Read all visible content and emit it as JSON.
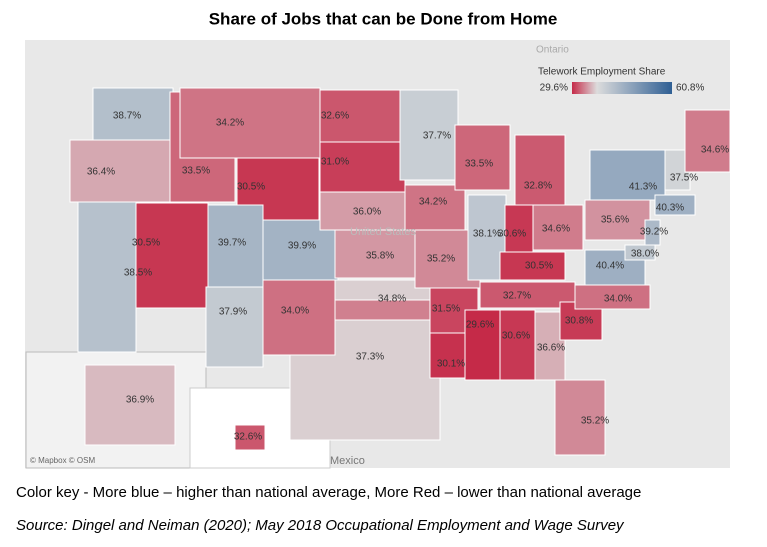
{
  "chart_data": {
    "type": "choropleth",
    "title": "Share of Jobs that can be Done from Home",
    "legend_title": "Telework Employment Share",
    "legend_min": {
      "value": 29.6,
      "label": "29.6%"
    },
    "legend_max": {
      "value": 60.8,
      "label": "60.8%"
    },
    "colors": {
      "low": "#c52a48",
      "mid": "#dcdcdc",
      "high": "#2f5f94"
    },
    "values": [
      38.7,
      36.4,
      38.5,
      30.5,
      33.5,
      34.2,
      30.5,
      39.7,
      39.9,
      37.9,
      34.0,
      32.6,
      31.0,
      36.0,
      35.8,
      34.8,
      37.3,
      37.7,
      34.2,
      35.2,
      31.5,
      30.1,
      33.5,
      38.1,
      32.8,
      30.6,
      34.6,
      30.5,
      32.7,
      29.6,
      30.6,
      36.6,
      35.2,
      30.8,
      34.0,
      40.4,
      35.6,
      41.3,
      38.0,
      39.2,
      40.3,
      37.5,
      34.6,
      36.9,
      32.6
    ],
    "value_labels": [
      "38.7%",
      "36.4%",
      "38.5%",
      "30.5%",
      "33.5%",
      "34.2%",
      "30.5%",
      "39.7%",
      "39.9%",
      "37.9%",
      "34.0%",
      "32.6%",
      "31.0%",
      "36.0%",
      "35.8%",
      "34.8%",
      "37.3%",
      "37.7%",
      "34.2%",
      "35.2%",
      "31.5%",
      "30.1%",
      "33.5%",
      "38.1%",
      "32.8%",
      "30.6%",
      "34.6%",
      "30.5%",
      "32.7%",
      "29.6%",
      "30.6%",
      "36.6%",
      "35.2%",
      "30.8%",
      "34.0%",
      "40.4%",
      "35.6%",
      "41.3%",
      "38.0%",
      "39.2%",
      "40.3%",
      "37.5%",
      "34.6%",
      "36.9%",
      "32.6%"
    ],
    "place_labels": [
      "Ontario",
      "United States",
      "Mexico"
    ],
    "attribution": "© Mapbox © OSM",
    "caption": "Color key - More blue – higher than national average, More Red – lower than national average",
    "source": "Source: Dingel and Neiman (2020); May 2018 Occupational Employment and Wage Survey"
  }
}
